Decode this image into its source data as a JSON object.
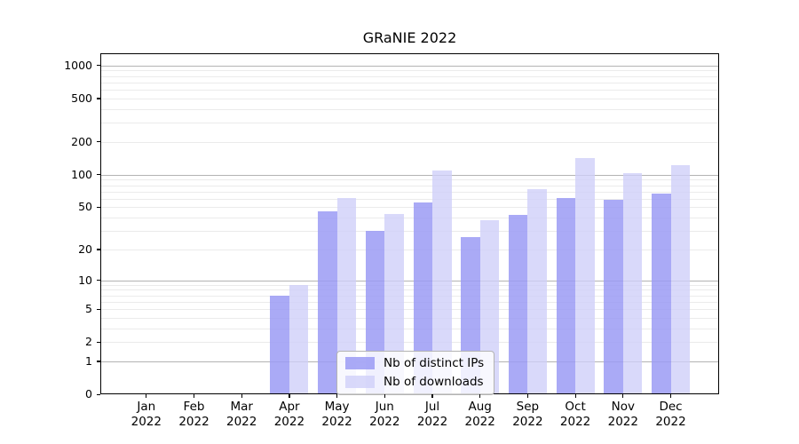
{
  "title": "GRaNIE 2022",
  "colors": {
    "series_distinct_ips": "rgba(155,155,245,0.85)",
    "series_downloads": "rgba(206,206,249,0.78)",
    "grid_major": "#b4b4b4",
    "grid_minor": "#ebebeb",
    "axis": "#000000",
    "legend_border": "#b3b3b3",
    "background": "#ffffff"
  },
  "legend": {
    "position": "lower center"
  },
  "chart_data": {
    "type": "bar",
    "title": "GRaNIE 2022",
    "categories": [
      "Jan 2022",
      "Feb 2022",
      "Mar 2022",
      "Apr 2022",
      "May 2022",
      "Jun 2022",
      "Jul 2022",
      "Aug 2022",
      "Sep 2022",
      "Oct 2022",
      "Nov 2022",
      "Dec 2022"
    ],
    "series": [
      {
        "name": "Nb of distinct IPs",
        "color": "rgba(155,155,245,0.85)",
        "values": [
          0,
          0,
          0,
          7,
          46,
          30,
          55,
          26,
          42,
          61,
          58,
          67
        ]
      },
      {
        "name": "Nb of downloads",
        "color": "rgba(206,206,249,0.78)",
        "values": [
          0,
          0,
          0,
          9,
          61,
          43,
          110,
          38,
          74,
          142,
          104,
          123
        ]
      }
    ],
    "xlabel": "",
    "ylabel": "",
    "y_scale": "log1p",
    "ylim": [
      0,
      1400
    ],
    "grid": true,
    "y_ticks": [
      {
        "label": "1000",
        "value": 1000
      },
      {
        "label": "500",
        "value": 500
      },
      {
        "label": "200",
        "value": 200
      },
      {
        "label": "100",
        "value": 100
      },
      {
        "label": "50",
        "value": 50
      },
      {
        "label": "20",
        "value": 20
      },
      {
        "label": "10",
        "value": 10
      },
      {
        "label": "5",
        "value": 5
      },
      {
        "label": "2",
        "value": 2
      },
      {
        "label": "1",
        "value": 1
      },
      {
        "label": "0",
        "value": 0
      }
    ],
    "major_gridlines": [
      1,
      10,
      100,
      1000
    ],
    "minor_gridlines": [
      2,
      3,
      4,
      5,
      6,
      7,
      8,
      9,
      20,
      30,
      40,
      50,
      60,
      70,
      80,
      90,
      200,
      300,
      400,
      500,
      600,
      700,
      800,
      900
    ],
    "legend_position": "lower center"
  }
}
